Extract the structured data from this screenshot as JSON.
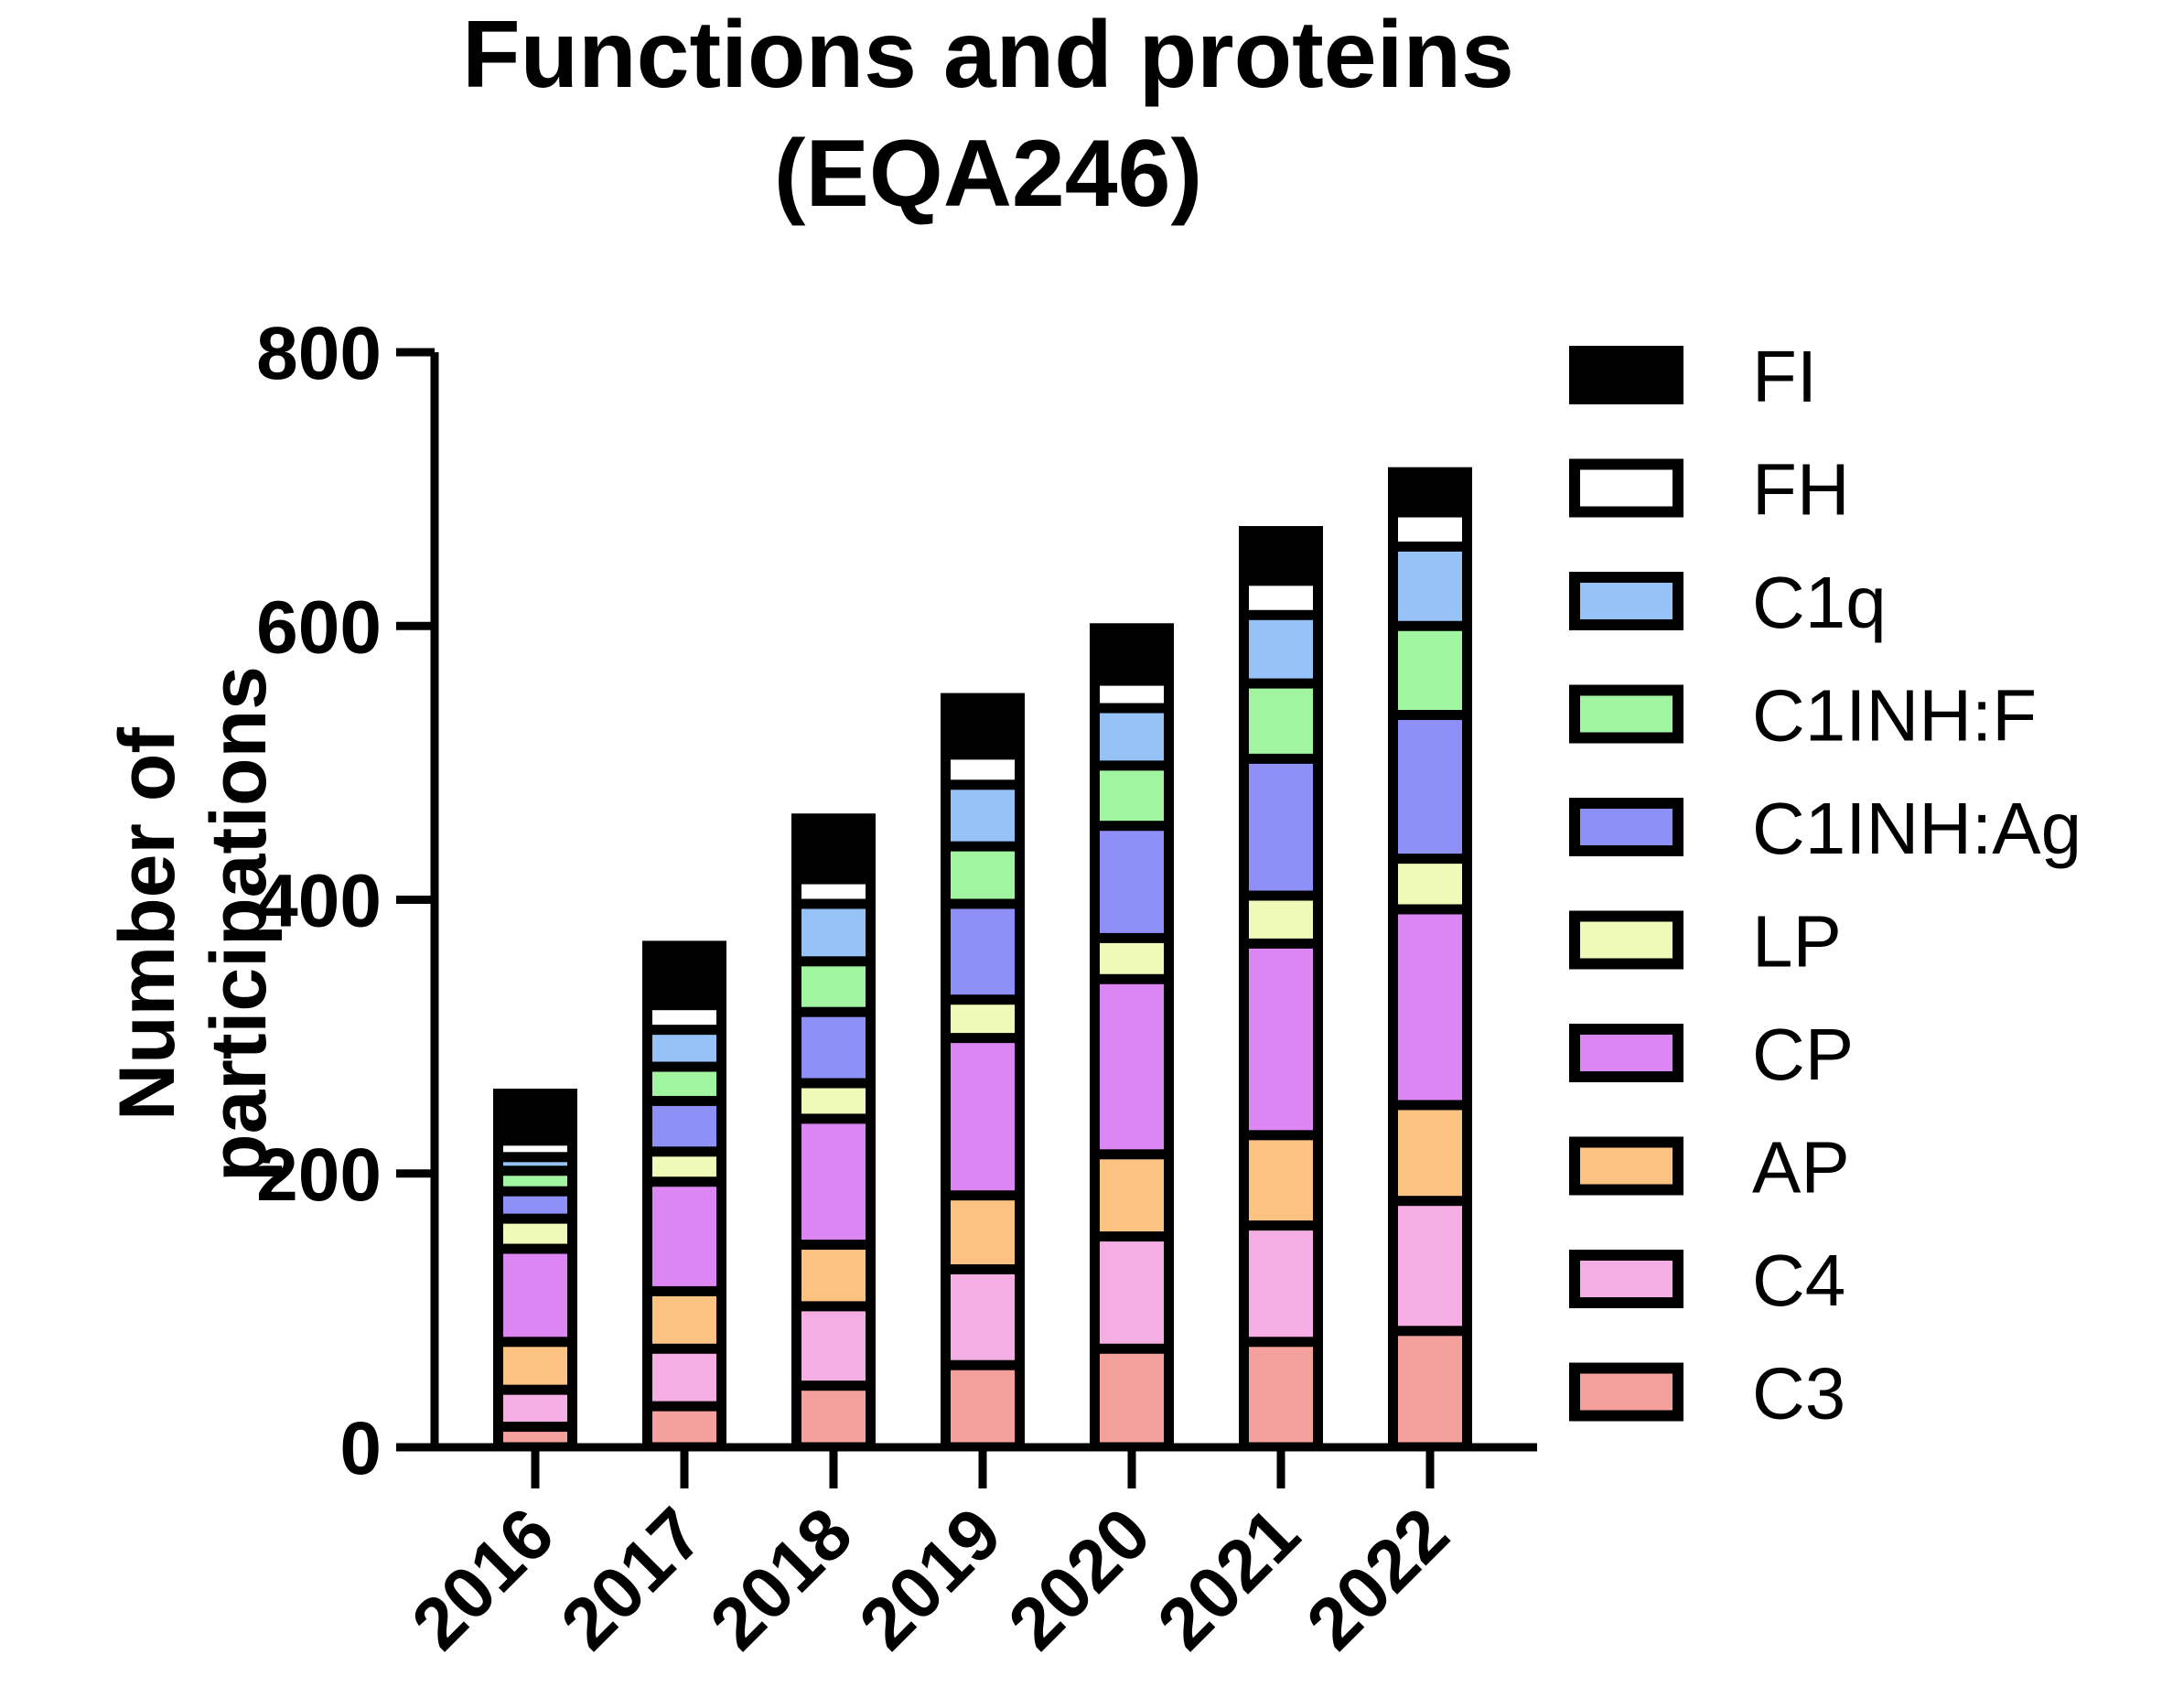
{
  "chart_data": {
    "type": "bar",
    "stacked": true,
    "title": "Functions and proteins",
    "subtitle": "(EQA246)",
    "ylabel": [
      "Number of",
      "participations"
    ],
    "xlabel": "",
    "ylim": [
      0,
      800
    ],
    "yticks": [
      "0",
      "200",
      "400",
      "600",
      "800"
    ],
    "categories": [
      "2016",
      "2017",
      "2018",
      "2019",
      "2020",
      "2021",
      "2022"
    ],
    "legend_position": "right",
    "series": [
      {
        "name": "C3",
        "color": "#f4a09c",
        "values": [
          15,
          30,
          45,
          60,
          72,
          77,
          85
        ]
      },
      {
        "name": "C4",
        "color": "#f5aee3",
        "values": [
          27,
          42,
          58,
          70,
          82,
          85,
          95
        ]
      },
      {
        "name": "AP",
        "color": "#fbc281",
        "values": [
          35,
          42,
          45,
          54,
          60,
          66,
          70
        ]
      },
      {
        "name": "CP",
        "color": "#dc86f4",
        "values": [
          68,
          80,
          92,
          115,
          128,
          140,
          143
        ]
      },
      {
        "name": "LP",
        "color": "#f0fab8",
        "values": [
          22,
          22,
          26,
          28,
          30,
          35,
          37
        ]
      },
      {
        "name": "C1INH:Ag",
        "color": "#8f8ff8",
        "values": [
          20,
          37,
          52,
          70,
          82,
          100,
          105
        ]
      },
      {
        "name": "C1INH:F",
        "color": "#a2f5a0",
        "values": [
          15,
          25,
          37,
          42,
          44,
          55,
          65
        ]
      },
      {
        "name": "C1q",
        "color": "#97c2f7",
        "values": [
          10,
          27,
          42,
          45,
          42,
          50,
          58
        ]
      },
      {
        "name": "FH",
        "color": "#ffffff",
        "values": [
          12,
          18,
          18,
          22,
          20,
          25,
          25
        ]
      },
      {
        "name": "FI",
        "color": "#000000",
        "values": [
          38,
          47,
          48,
          45,
          42,
          40,
          33
        ]
      }
    ]
  }
}
